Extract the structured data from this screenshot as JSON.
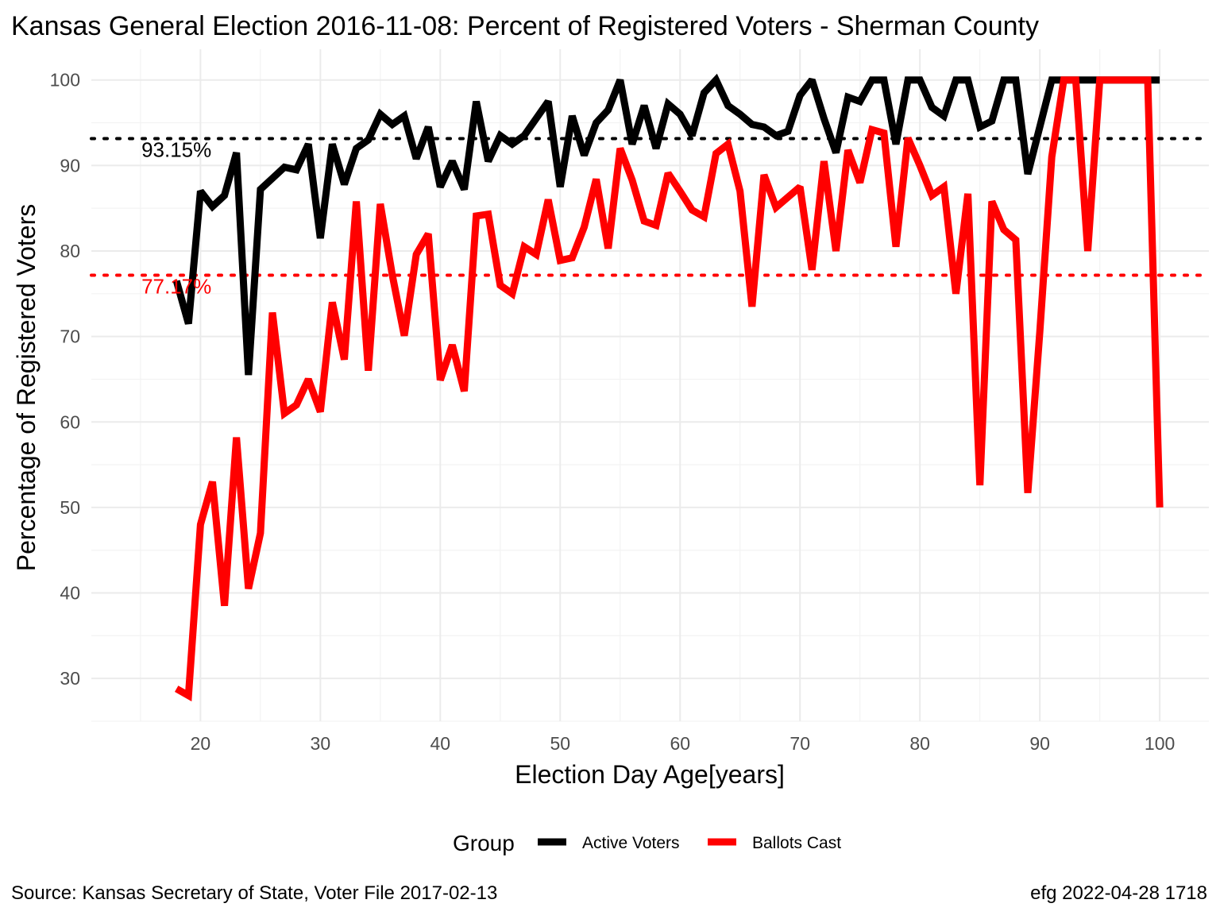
{
  "chart_data": {
    "type": "line",
    "title": "Kansas General Election 2016-11-08:  Percent of Registered Voters - Sherman County",
    "xlabel": "Election Day Age[years]",
    "ylabel": "Percentage of Registered Voters",
    "xlim": [
      10.9,
      104.1
    ],
    "ylim": [
      25,
      103.6
    ],
    "x_ticks": [
      20,
      30,
      40,
      50,
      60,
      70,
      80,
      90,
      100
    ],
    "y_ticks": [
      30,
      40,
      50,
      60,
      70,
      80,
      90,
      100
    ],
    "grid": true,
    "legend": {
      "title": "Group",
      "position": "bottom"
    },
    "reference_lines": [
      {
        "value": 93.15,
        "label": "93.15%",
        "color": "#000000",
        "style": "dotted"
      },
      {
        "value": 77.17,
        "label": "77.17%",
        "color": "#ff0000",
        "style": "dotted"
      }
    ],
    "x": [
      18,
      19,
      20,
      21,
      22,
      23,
      24,
      25,
      26,
      27,
      28,
      29,
      30,
      31,
      32,
      33,
      34,
      35,
      36,
      37,
      38,
      39,
      40,
      41,
      42,
      43,
      44,
      45,
      46,
      47,
      48,
      49,
      50,
      51,
      52,
      53,
      54,
      55,
      56,
      57,
      58,
      59,
      60,
      61,
      62,
      63,
      64,
      65,
      66,
      67,
      68,
      69,
      70,
      71,
      72,
      73,
      74,
      75,
      76,
      77,
      78,
      79,
      80,
      81,
      82,
      83,
      84,
      85,
      86,
      87,
      88,
      89,
      90,
      91,
      92,
      93,
      94,
      95,
      96,
      97,
      98,
      99,
      100
    ],
    "series": [
      {
        "name": "Active Voters",
        "color": "#000000",
        "values": [
          76.5,
          71.5,
          87,
          85.2,
          86.5,
          91.5,
          65.5,
          87.2,
          88.5,
          89.8,
          89.5,
          92.5,
          81.5,
          92.5,
          87.8,
          92,
          93,
          96,
          94.8,
          95.8,
          90.8,
          94.5,
          87.5,
          90.5,
          87.2,
          97.5,
          90.5,
          93.5,
          92.5,
          93.5,
          95.5,
          97.5,
          87.5,
          95.8,
          91.2,
          95,
          96.5,
          100,
          92.5,
          97,
          92,
          97.2,
          96,
          93.5,
          98.5,
          100,
          97,
          96,
          94.8,
          94.5,
          93.5,
          94,
          98.2,
          100,
          95.5,
          91.5,
          98,
          97.5,
          100,
          100,
          92.5,
          100,
          100,
          96.8,
          95.8,
          100,
          100,
          94.5,
          95.2,
          100,
          100,
          89,
          94.5,
          100,
          100,
          100,
          100,
          100,
          100,
          100,
          100,
          100,
          100
        ]
      },
      {
        "name": "Ballots Cast",
        "color": "#ff0000",
        "values": [
          28.8,
          28,
          48,
          53,
          38.5,
          58.2,
          40.5,
          47,
          72.8,
          61,
          62,
          65,
          61.2,
          74,
          67.3,
          85.8,
          66,
          85.5,
          77.2,
          70.1,
          79.6,
          82,
          64.9,
          69,
          63.6,
          84.1,
          84.3,
          76,
          75,
          80.5,
          79.6,
          86,
          78.9,
          79.2,
          82.8,
          88.4,
          80.3,
          92,
          88.3,
          83.5,
          83,
          89.1,
          87,
          84.8,
          84,
          91.4,
          92.5,
          87,
          73.5,
          88.9,
          85.1,
          86.3,
          87.5,
          77.8,
          90.5,
          80,
          91.8,
          88,
          94.2,
          93.8,
          80.5,
          93.2,
          90,
          86.5,
          87.5,
          75,
          86.7,
          52.6,
          85.8,
          82.5,
          81.3,
          51.7,
          70.5,
          91,
          100,
          100,
          80,
          100,
          100,
          100,
          100,
          100,
          50
        ]
      }
    ]
  },
  "caption": {
    "left": "Source:  Kansas Secretary of State, Voter File  2017-02-13",
    "right": "efg 2022-04-28 1718"
  }
}
